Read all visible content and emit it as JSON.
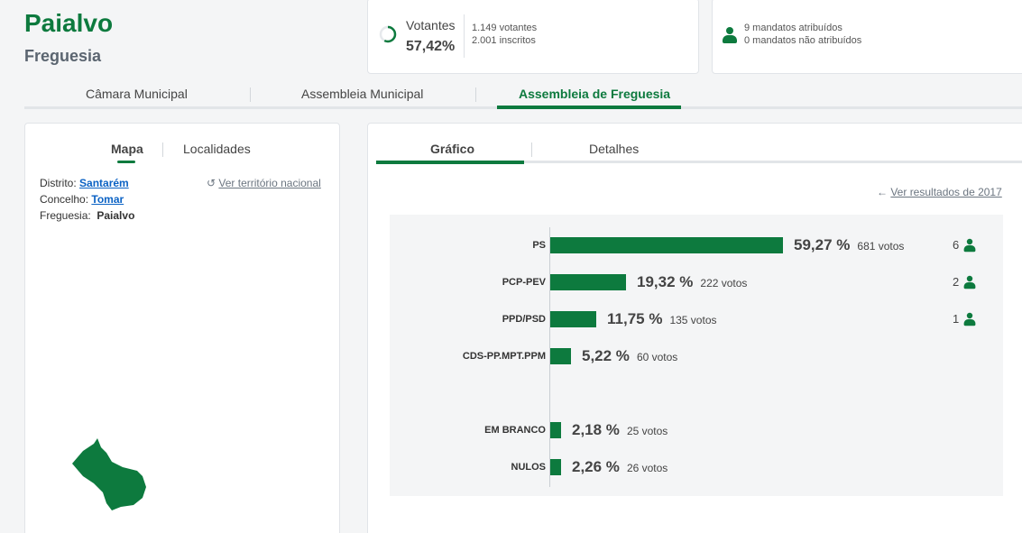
{
  "header": {
    "title": "Paialvo",
    "subtitle": "Freguesia"
  },
  "votantes": {
    "label": "Votantes",
    "percent": "57,42%",
    "participation_fraction": 0.5742,
    "voters": "1.149 votantes",
    "registered": "2.001 inscritos"
  },
  "mandatos": {
    "assigned": "9 mandatos atribuídos",
    "unassigned": "0 mandatos não atribuídos"
  },
  "main_tabs": [
    {
      "label": "Câmara Municipal"
    },
    {
      "label": "Assembleia Municipal"
    },
    {
      "label": "Assembleia de Freguesia"
    }
  ],
  "left_panel": {
    "tabs": [
      {
        "label": "Mapa"
      },
      {
        "label": "Localidades"
      }
    ],
    "distrito_label": "Distrito:",
    "distrito_value": "Santarém",
    "concelho_label": "Concelho:",
    "concelho_value": "Tomar",
    "freguesia_label": "Freguesia:",
    "freguesia_value": "Paialvo",
    "national_link": "Ver território nacional"
  },
  "right_panel": {
    "tabs": [
      {
        "label": "Gráfico"
      },
      {
        "label": "Detalhes"
      }
    ],
    "previous_link": "Ver resultados de 2017"
  },
  "colors": {
    "accent": "#0d7a3e",
    "link": "#0b62c4"
  },
  "chart_data": {
    "type": "bar",
    "orientation": "horizontal",
    "categories": [
      "PS",
      "PCP-PEV",
      "PPD/PSD",
      "CDS-PP.MPT.PPM",
      "EM BRANCO",
      "NULOS"
    ],
    "values": [
      59.27,
      19.32,
      11.75,
      5.22,
      2.18,
      2.26
    ],
    "percent_labels": [
      "59,27 %",
      "19,32 %",
      "11,75 %",
      "5,22 %",
      "2,18 %",
      "2,26 %"
    ],
    "vote_labels": [
      "681 votos",
      "222 votos",
      "135 votos",
      "60 votos",
      "25 votos",
      "26 votos"
    ],
    "seats": [
      "6",
      "2",
      "1",
      null,
      null,
      null
    ]
  }
}
